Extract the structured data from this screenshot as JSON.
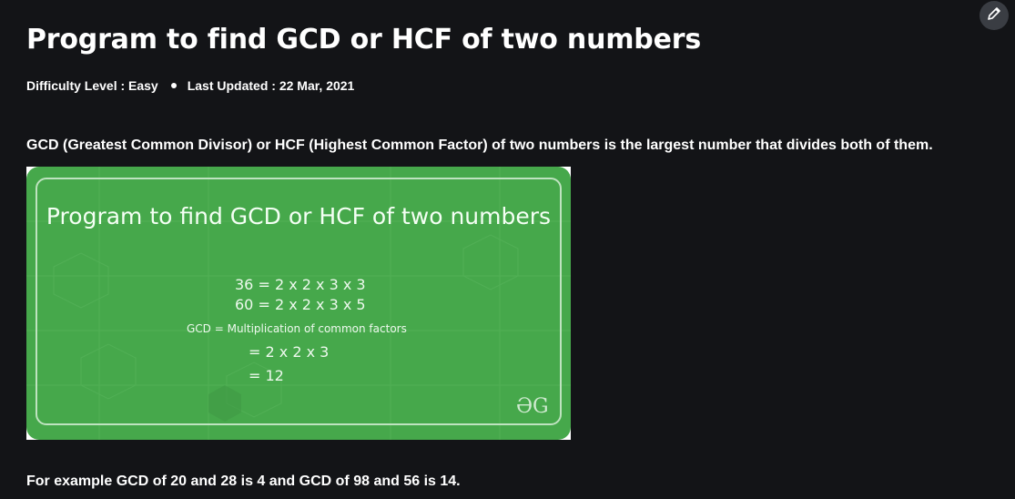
{
  "article": {
    "title": "Program to find GCD or HCF of two numbers",
    "difficulty": "Difficulty Level : Easy",
    "updated": "Last Updated : 22 Mar, 2021",
    "intro": "GCD (Greatest Common Divisor) or HCF (Highest Common Factor) of two numbers is the largest number that divides both of them.",
    "example": "For example GCD of 20 and 28 is 4 and GCD of 98 and 56 is 14."
  },
  "banner": {
    "title": "Program to find GCD or HCF of two numbers",
    "line1": "36 = 2 x 2 x 3 x 3",
    "line2": "60 = 2 x 2 x 3 x 5",
    "line3": "GCD = Multiplication of common factors",
    "line4": "= 2 x 2 x 3",
    "line5": "= 12",
    "logo": "ƏG"
  },
  "toolbar": {
    "edit_icon": "pencil-icon"
  },
  "colors": {
    "page_bg": "#131417",
    "banner_green": "#46a84b",
    "edit_button_bg": "#3a3d43"
  }
}
